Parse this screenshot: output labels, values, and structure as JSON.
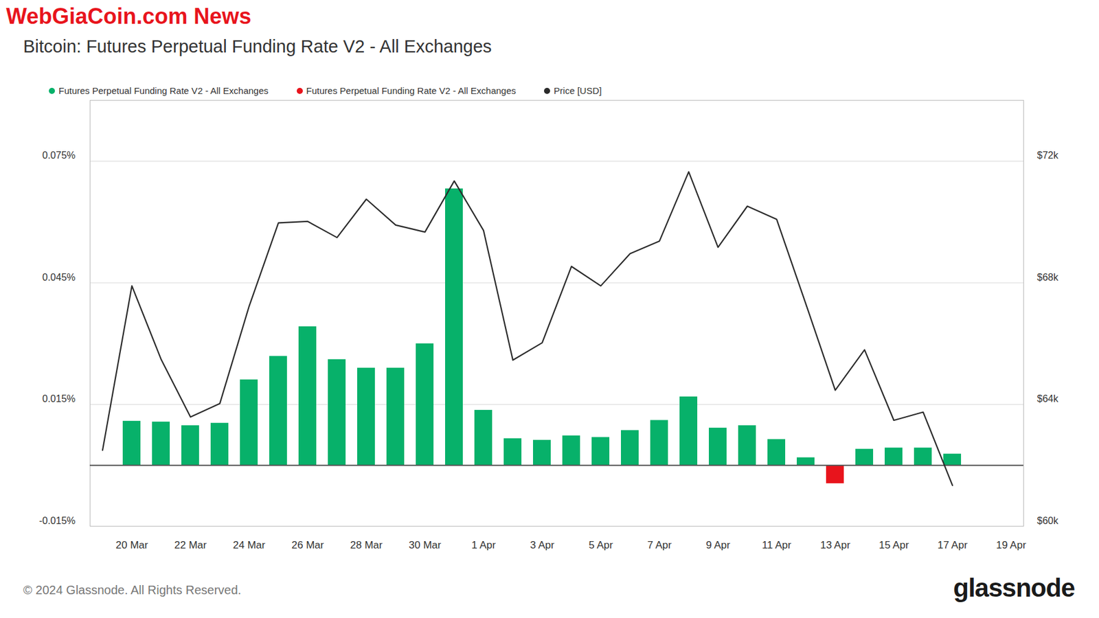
{
  "chart_data": {
    "type": "bar",
    "title": "Bitcoin: Futures Perpetual Funding Rate V2 - All Exchanges",
    "annotations": [
      "WebGiaCoin.com News"
    ],
    "source": "© 2024 Glassnode. All Rights Reserved.",
    "logo": "glassnode",
    "categories": [
      null,
      "20 Mar",
      null,
      "22 Mar",
      null,
      "24 Mar",
      null,
      "26 Mar",
      null,
      "28 Mar",
      null,
      "30 Mar",
      null,
      "1 Apr",
      null,
      "3 Apr",
      null,
      "5 Apr",
      null,
      "7 Apr",
      null,
      "9 Apr",
      null,
      "11 Apr",
      null,
      "13 Apr",
      null,
      "15 Apr",
      null,
      "17 Apr",
      null,
      "19 Apr"
    ],
    "series": [
      {
        "name": "Futures Perpetual Funding Rate V2 - All Exchanges",
        "type": "bar",
        "color": "#07b16a",
        "values": [
          null,
          0.0109,
          0.0107,
          0.0098,
          0.0104,
          0.0211,
          0.0269,
          0.0342,
          0.0261,
          0.024,
          0.024,
          0.03,
          0.0682,
          0.0136,
          0.0066,
          0.0062,
          0.0073,
          0.0069,
          0.0086,
          0.0111,
          0.0169,
          0.0092,
          0.0098,
          0.0064,
          0.0019,
          null,
          0.004,
          0.0043,
          0.0043,
          0.0028,
          null,
          null
        ]
      },
      {
        "name": "Futures Perpetual Funding Rate V2 - All Exchanges",
        "type": "bar",
        "color": "#e8141c",
        "values": [
          null,
          null,
          null,
          null,
          null,
          null,
          null,
          null,
          null,
          null,
          null,
          null,
          null,
          null,
          null,
          null,
          null,
          null,
          null,
          null,
          null,
          null,
          null,
          null,
          null,
          -0.0045,
          null,
          null,
          null,
          null,
          null,
          null
        ]
      },
      {
        "name": "Price [USD]",
        "type": "line",
        "axis": "y2",
        "color": "#2b2b2b",
        "values": [
          62500,
          67900,
          65480,
          63590,
          64030,
          67230,
          69970,
          70020,
          69490,
          70750,
          69900,
          69670,
          71350,
          69720,
          65460,
          66030,
          68540,
          67900,
          68960,
          69370,
          71650,
          69170,
          70520,
          70090,
          67300,
          64470,
          65800,
          63480,
          63750,
          61340,
          null,
          null
        ]
      }
    ],
    "ylim": [
      -0.015,
      0.09
    ],
    "yticks": [
      {
        "value": -0.015,
        "label": "-0.015%"
      },
      {
        "value": 0.015,
        "label": "0.015%"
      },
      {
        "value": 0.045,
        "label": "0.045%"
      },
      {
        "value": 0.075,
        "label": "0.075%"
      }
    ],
    "y2lim": [
      60000,
      74000
    ],
    "y2ticks": [
      {
        "value": 60000,
        "label": "$60k"
      },
      {
        "value": 64000,
        "label": "$64k"
      },
      {
        "value": 68000,
        "label": "$68k"
      },
      {
        "value": 72000,
        "label": "$72k"
      }
    ],
    "grid": true,
    "legend": "top-left"
  }
}
